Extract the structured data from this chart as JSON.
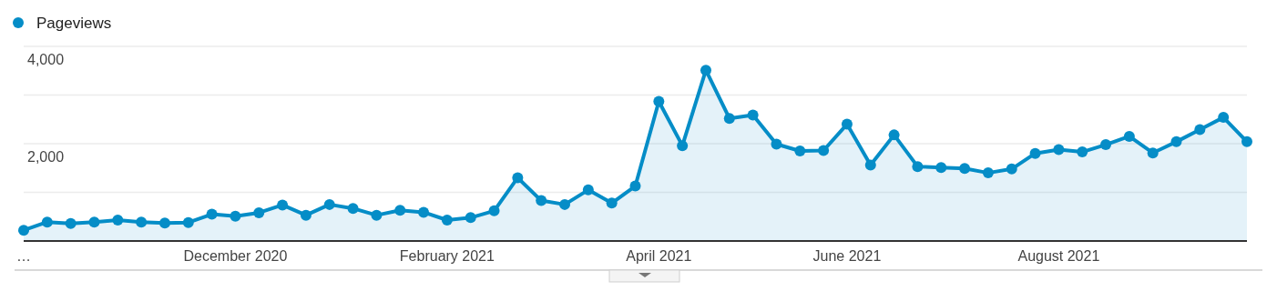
{
  "chart_data": {
    "type": "area",
    "categories": [
      "…",
      null,
      null,
      null,
      null,
      null,
      null,
      null,
      null,
      "December 2020",
      null,
      null,
      null,
      null,
      null,
      null,
      null,
      null,
      "February 2021",
      null,
      null,
      null,
      null,
      null,
      null,
      null,
      null,
      "April 2021",
      null,
      null,
      null,
      null,
      null,
      null,
      null,
      "June 2021",
      null,
      null,
      null,
      null,
      null,
      null,
      null,
      null,
      "August 2021",
      null,
      null,
      null,
      null,
      null,
      null,
      null,
      null
    ],
    "series": [
      {
        "name": "Pageviews",
        "color": "#058dc7",
        "values": [
          220,
          390,
          360,
          390,
          430,
          390,
          370,
          380,
          550,
          510,
          580,
          740,
          530,
          750,
          670,
          530,
          630,
          590,
          430,
          480,
          620,
          1300,
          830,
          750,
          1050,
          780,
          1130,
          2870,
          1960,
          3510,
          2520,
          2590,
          1990,
          1850,
          1860,
          2400,
          1560,
          2180,
          1530,
          1510,
          1490,
          1400,
          1480,
          1800,
          1880,
          1830,
          1980,
          2150,
          1810,
          2040,
          2290,
          2540,
          2040
        ]
      }
    ],
    "ylim": [
      0,
      4000
    ],
    "yticks": [
      {
        "value": 0,
        "label": null
      },
      {
        "value": 1000,
        "label": null
      },
      {
        "value": 2000,
        "label": "2,000"
      },
      {
        "value": 3000,
        "label": null
      },
      {
        "value": 4000,
        "label": "4,000"
      }
    ],
    "grid": "y",
    "legend": "top left",
    "marker": "circle",
    "line_style": "solid"
  }
}
